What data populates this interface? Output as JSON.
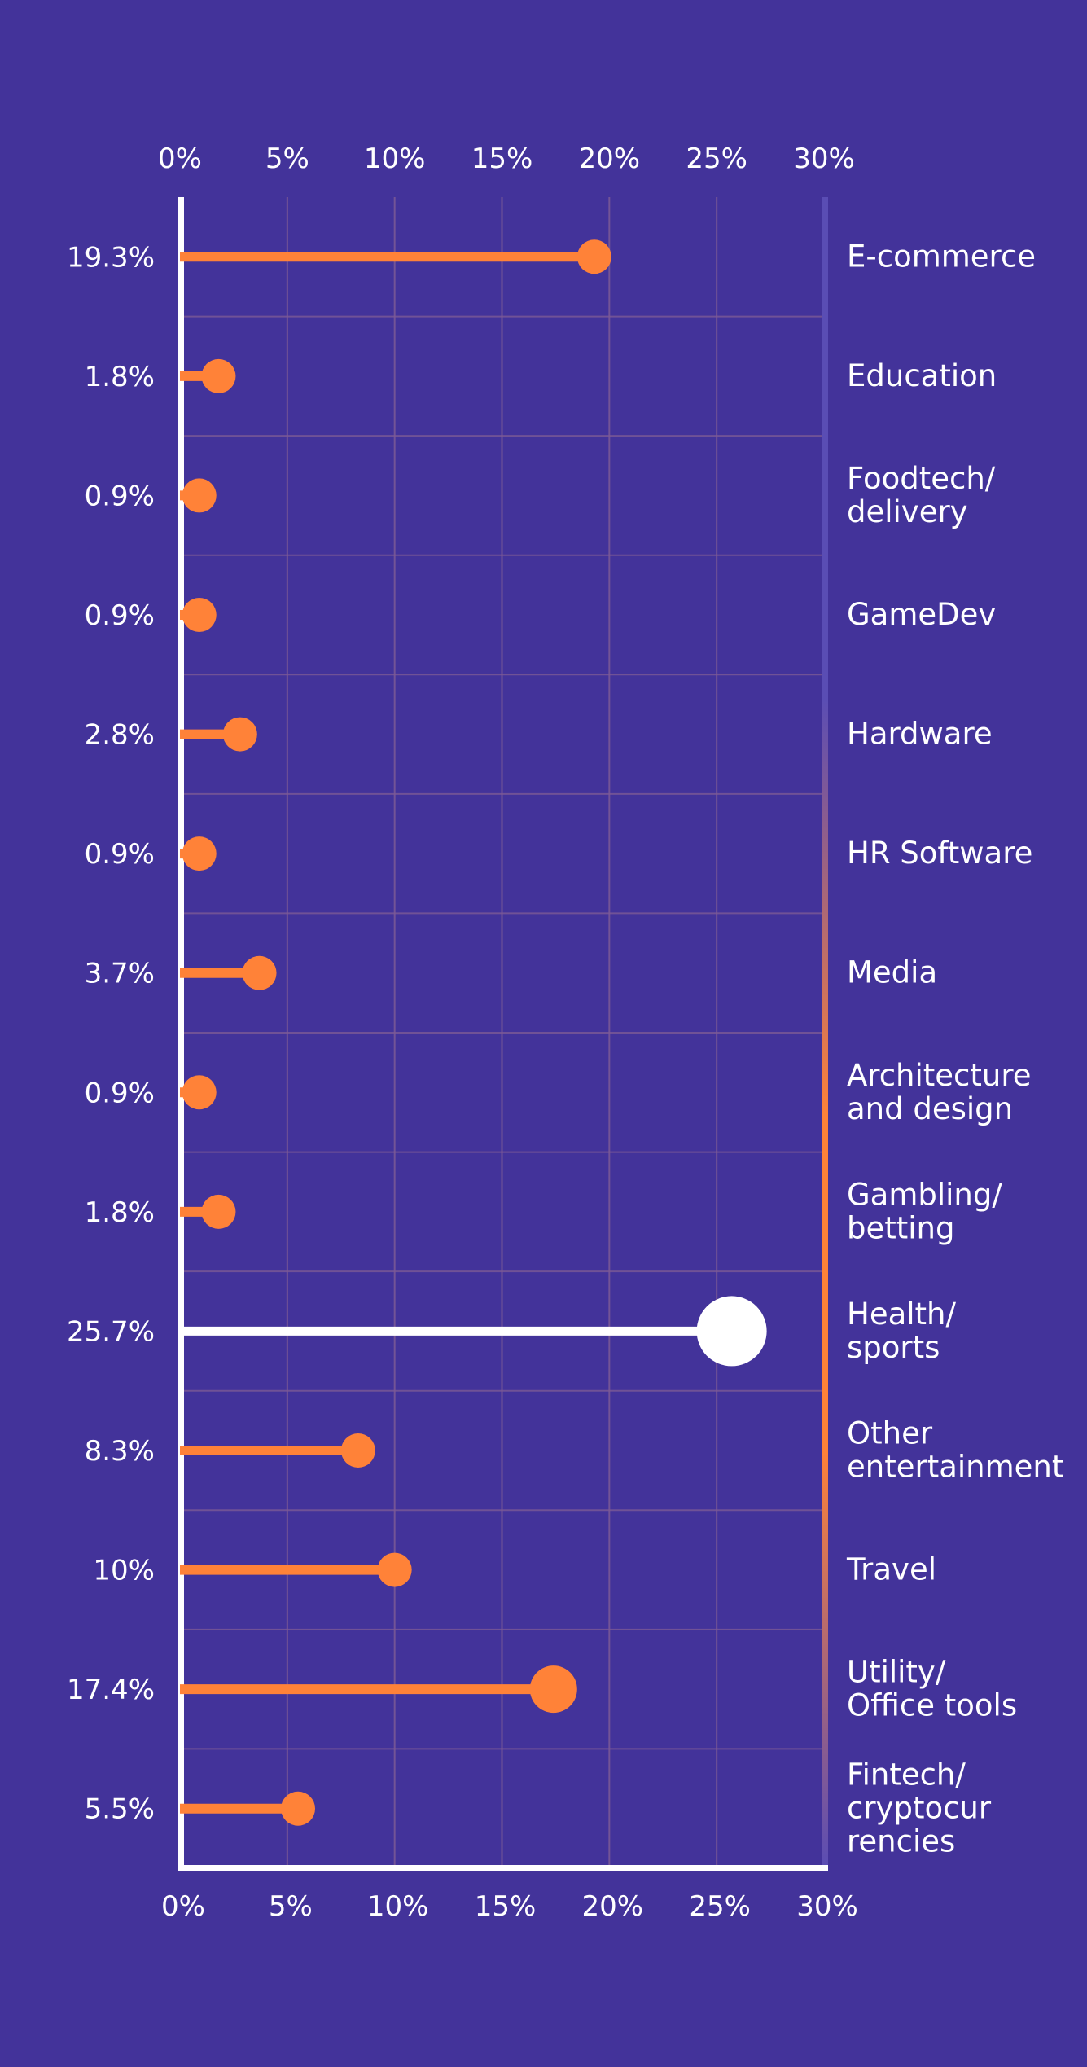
{
  "colors": {
    "background": "#43339a",
    "accent": "#ff8238",
    "highlight": "#ffffff",
    "grid": "#7c5a96",
    "right_bar_top": "#5a4db4",
    "right_bar_mid": "#ff8238",
    "text": "#ffffff"
  },
  "chart_data": {
    "type": "lollipop",
    "orientation": "horizontal",
    "title": "",
    "xlabel": "",
    "ylabel": "",
    "xlim": [
      0,
      30
    ],
    "x_ticks": [
      "0%",
      "5%",
      "10%",
      "15%",
      "20%",
      "25%",
      "30%"
    ],
    "axis_position": "top and bottom",
    "grid": true,
    "highlight_category": "Health/ sports",
    "categories": [
      "E-commerce",
      "Education",
      "Foodtech/ delivery",
      "GameDev",
      "Hardware",
      "HR Software",
      "Media",
      "Architecture and design",
      "Gambling/ betting",
      "Health/ sports",
      "Other entertainment",
      "Travel",
      "Utility/ Office tools",
      "Fintech/ cryptocur rencies"
    ],
    "category_lines": [
      [
        "E-commerce"
      ],
      [
        "Education"
      ],
      [
        "Foodtech/",
        "delivery"
      ],
      [
        "GameDev"
      ],
      [
        "Hardware"
      ],
      [
        "HR Software"
      ],
      [
        "Media"
      ],
      [
        "Architecture",
        "and design"
      ],
      [
        "Gambling/",
        "betting"
      ],
      [
        "Health/",
        "sports"
      ],
      [
        "Other",
        "entertainment"
      ],
      [
        "Travel"
      ],
      [
        "Utility/",
        "Office tools"
      ],
      [
        "Fintech/",
        "cryptocur",
        "rencies"
      ]
    ],
    "values": [
      19.3,
      1.8,
      0.9,
      0.9,
      2.8,
      0.9,
      3.7,
      0.9,
      1.8,
      25.7,
      8.3,
      10,
      17.4,
      5.5
    ],
    "value_labels": [
      "19.3%",
      "1.8%",
      "0.9%",
      "0.9%",
      "2.8%",
      "0.9%",
      "3.7%",
      "0.9%",
      "1.8%",
      "25.7%",
      "8.3%",
      "10%",
      "17.4%",
      "5.5%"
    ]
  }
}
